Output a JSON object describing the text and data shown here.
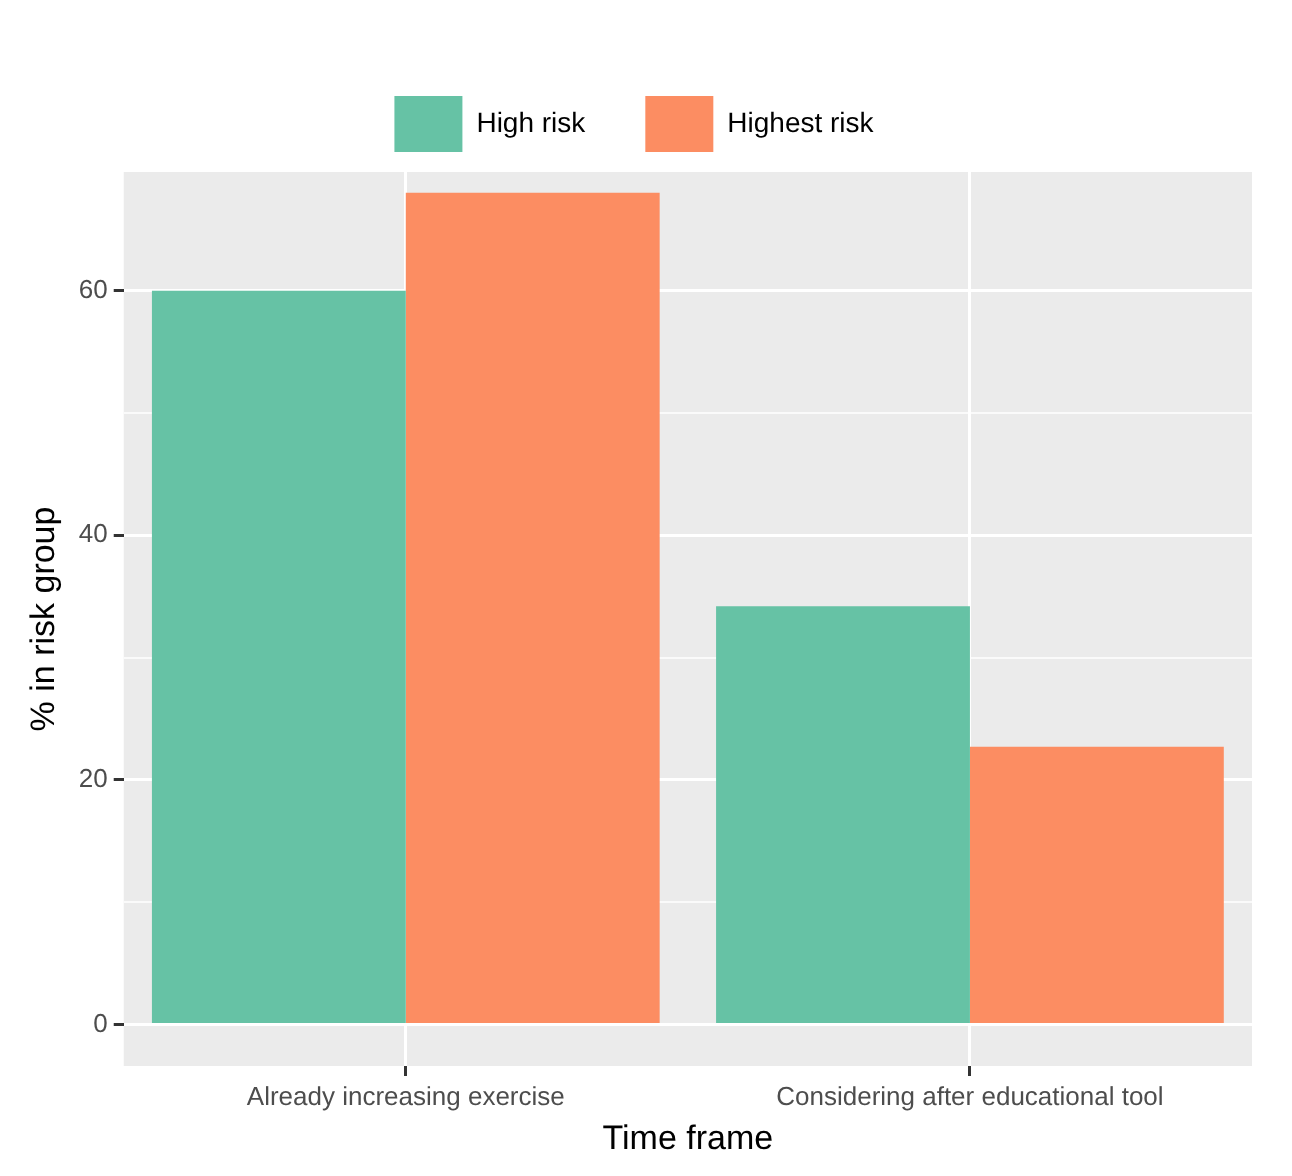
{
  "chart_data": {
    "type": "bar",
    "xlabel": "Time frame",
    "ylabel": "% in risk group",
    "categories": [
      "Already increasing exercise",
      "Considering after educational tool"
    ],
    "series": [
      {
        "name": "High risk",
        "color": "#66c2a5",
        "values": [
          60,
          34.2
        ]
      },
      {
        "name": "Highest risk",
        "color": "#fc8d62",
        "values": [
          68,
          22.7
        ]
      }
    ],
    "ylim": [
      -3.4,
      69.7
    ],
    "yticks": [
      0,
      {
        "value": 10,
        "label": null
      },
      20,
      {
        "value": 30,
        "label": null
      },
      40,
      {
        "value": 50,
        "label": null
      },
      60
    ],
    "grid": true,
    "legend": "top"
  }
}
